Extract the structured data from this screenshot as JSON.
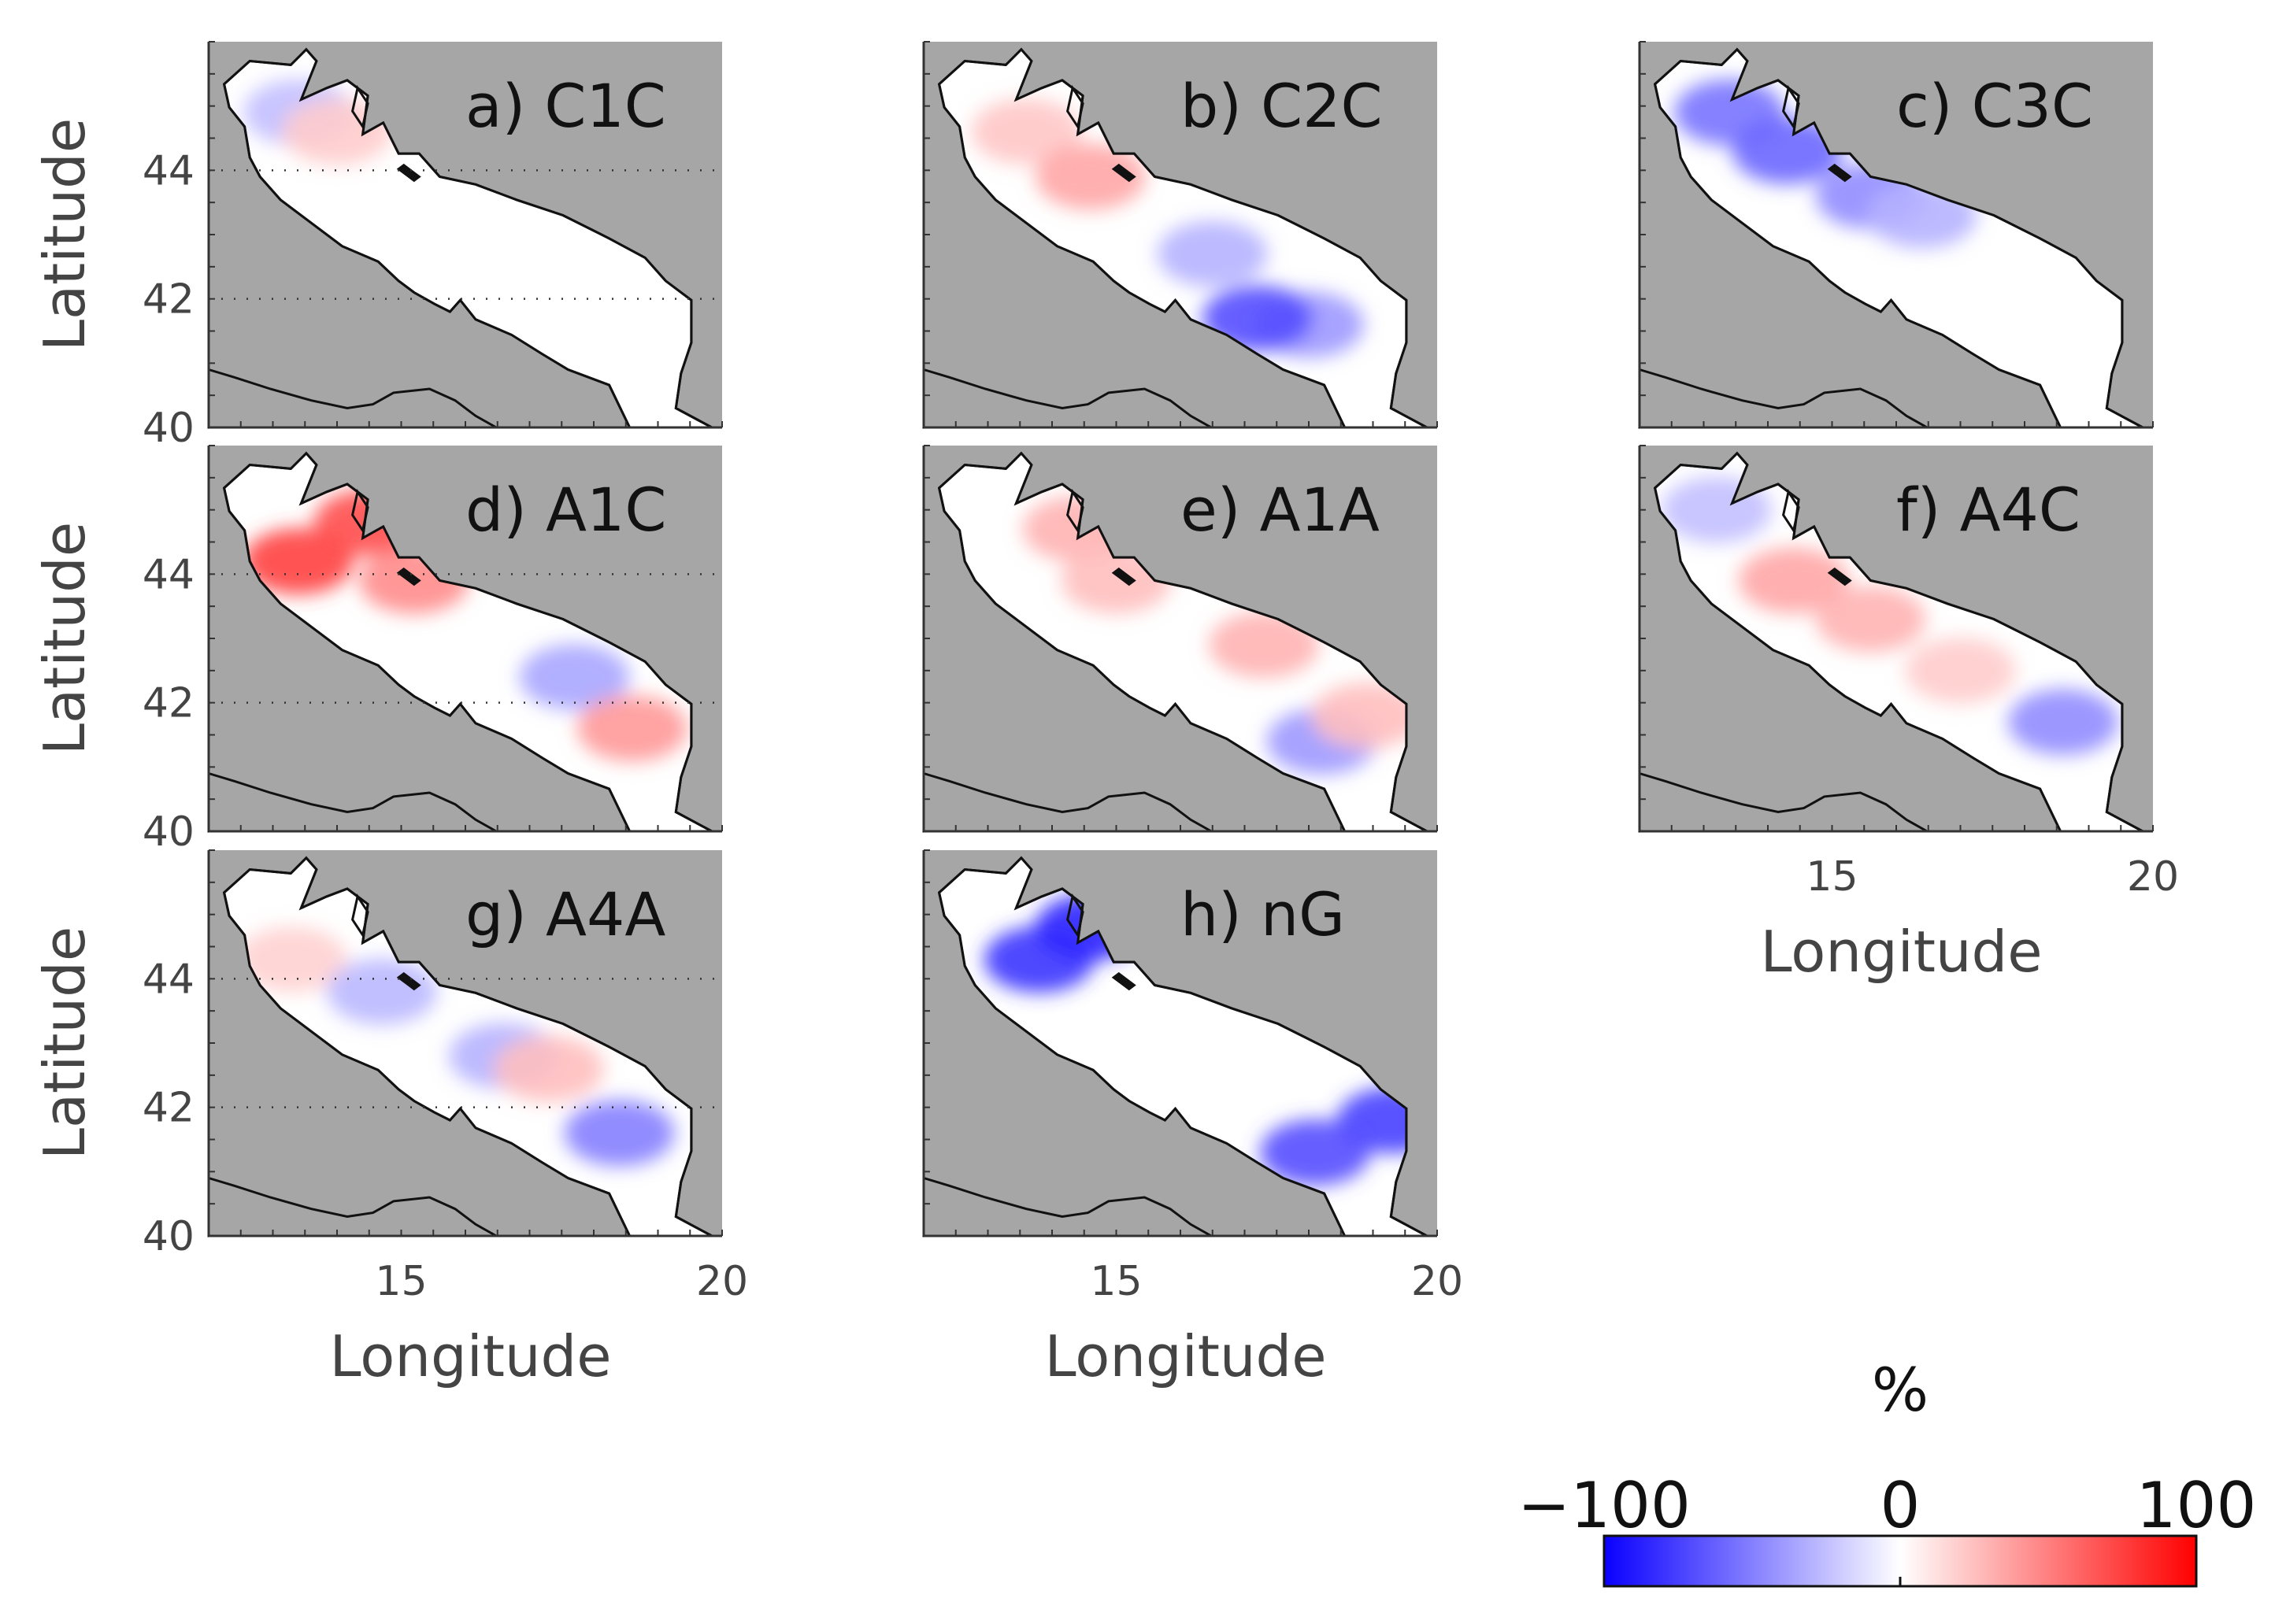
{
  "chart_data": {
    "type": "heatmap",
    "layout": "3-column grid of map panels",
    "x_axis": {
      "label": "Longitude",
      "lim": [
        12,
        20
      ],
      "ticks": [
        15,
        20
      ]
    },
    "y_axis": {
      "label": "Latitude",
      "lim": [
        40,
        46
      ],
      "ticks": [
        40,
        42,
        44
      ]
    },
    "gridlines": "dotted at latitude 42 and 44",
    "land_color": "#a6a6a6",
    "sea_color": "#ffffff",
    "coast_color": "#111111",
    "colorbar": {
      "title": "%",
      "min": -100,
      "max": 100,
      "tick_labels": [
        "−100",
        "0",
        "100"
      ],
      "colors": [
        "#0a00ff",
        "#ffffff",
        "#ff0000"
      ],
      "placement": "bottom-right"
    },
    "panels": [
      {
        "id": "a",
        "title": "a) C1C",
        "anomalies": [
          {
            "lon": 13.4,
            "lat": 44.9,
            "value": -25
          },
          {
            "lon": 14.0,
            "lat": 44.6,
            "value": 20
          }
        ]
      },
      {
        "id": "b",
        "title": "b) C2C",
        "anomalies": [
          {
            "lon": 13.6,
            "lat": 44.6,
            "value": 22
          },
          {
            "lon": 14.6,
            "lat": 43.9,
            "value": 35
          },
          {
            "lon": 16.5,
            "lat": 42.7,
            "value": -30
          },
          {
            "lon": 18.0,
            "lat": 41.6,
            "value": -40
          },
          {
            "lon": 17.2,
            "lat": 41.7,
            "value": -70
          }
        ]
      },
      {
        "id": "c",
        "title": "c) C3C",
        "anomalies": [
          {
            "lon": 13.4,
            "lat": 44.9,
            "value": -55
          },
          {
            "lon": 14.3,
            "lat": 44.3,
            "value": -60
          },
          {
            "lon": 15.6,
            "lat": 43.6,
            "value": -45
          },
          {
            "lon": 16.4,
            "lat": 43.3,
            "value": -30
          }
        ]
      },
      {
        "id": "d",
        "title": "d) A1C",
        "anomalies": [
          {
            "lon": 13.4,
            "lat": 44.2,
            "value": 75
          },
          {
            "lon": 14.5,
            "lat": 44.8,
            "value": 70
          },
          {
            "lon": 15.2,
            "lat": 43.9,
            "value": 45
          },
          {
            "lon": 17.7,
            "lat": 42.4,
            "value": -35
          },
          {
            "lon": 18.6,
            "lat": 41.6,
            "value": 40
          }
        ]
      },
      {
        "id": "e",
        "title": "e) A1A",
        "anomalies": [
          {
            "lon": 14.4,
            "lat": 44.7,
            "value": 30
          },
          {
            "lon": 15.0,
            "lat": 43.9,
            "value": 25
          },
          {
            "lon": 17.3,
            "lat": 42.9,
            "value": 30
          },
          {
            "lon": 18.2,
            "lat": 41.4,
            "value": -40
          },
          {
            "lon": 18.9,
            "lat": 41.8,
            "value": 25
          }
        ]
      },
      {
        "id": "f",
        "title": "f) A4C",
        "anomalies": [
          {
            "lon": 13.2,
            "lat": 45.0,
            "value": -25
          },
          {
            "lon": 14.4,
            "lat": 43.9,
            "value": 35
          },
          {
            "lon": 15.6,
            "lat": 43.3,
            "value": 30
          },
          {
            "lon": 17.0,
            "lat": 42.5,
            "value": 20
          },
          {
            "lon": 18.6,
            "lat": 41.7,
            "value": -45
          }
        ]
      },
      {
        "id": "g",
        "title": "g) A4A",
        "anomalies": [
          {
            "lon": 13.3,
            "lat": 44.3,
            "value": 18
          },
          {
            "lon": 14.7,
            "lat": 43.8,
            "value": -28
          },
          {
            "lon": 16.6,
            "lat": 42.8,
            "value": -30
          },
          {
            "lon": 17.3,
            "lat": 42.6,
            "value": 25
          },
          {
            "lon": 18.4,
            "lat": 41.6,
            "value": -50
          }
        ]
      },
      {
        "id": "h",
        "title": "h) nG",
        "anomalies": [
          {
            "lon": 13.8,
            "lat": 44.3,
            "value": -80
          },
          {
            "lon": 14.6,
            "lat": 44.8,
            "value": -85
          },
          {
            "lon": 19.3,
            "lat": 41.8,
            "value": -75
          },
          {
            "lon": 18.1,
            "lat": 41.3,
            "value": -70
          }
        ]
      }
    ]
  }
}
